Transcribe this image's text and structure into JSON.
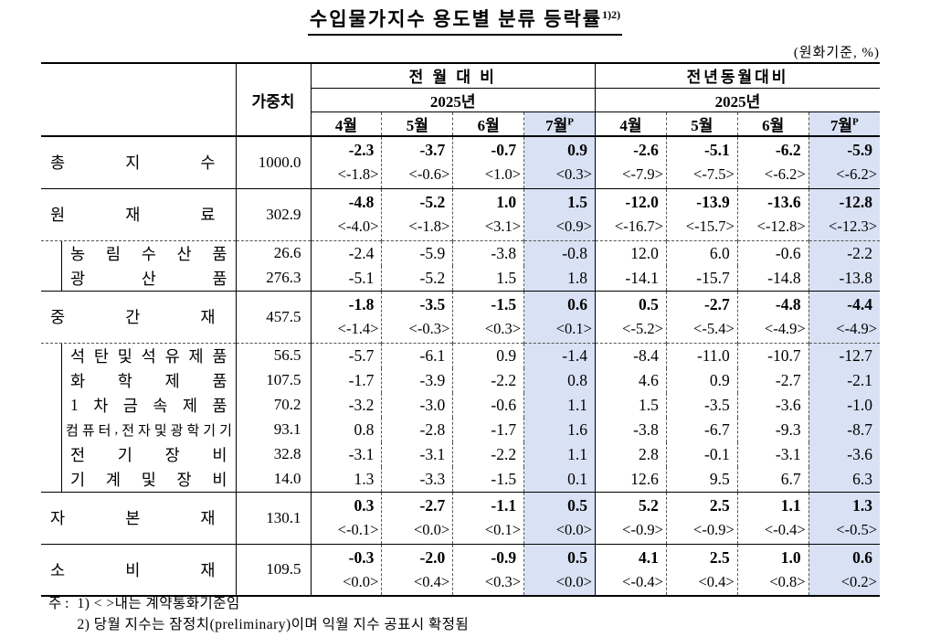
{
  "title": {
    "text": "수입물가지수 용도별 분류 등락률",
    "superscript": "1)2)"
  },
  "unit_note": "(원화기준, %)",
  "colors": {
    "highlight": "#d9e1f4",
    "border": "#000000"
  },
  "header": {
    "weight_label": "가중치",
    "groups": [
      {
        "label": "전 월 대 비",
        "year": "2025년"
      },
      {
        "label": "전년동월대비",
        "year": "2025년"
      }
    ],
    "months": [
      "4월",
      "5월",
      "6월",
      "7월"
    ],
    "prelim_mark": "P"
  },
  "table": {
    "rows": [
      {
        "type": "major",
        "label": "총지수",
        "weight": "1000.0",
        "mom": [
          "-2.3",
          "-3.7",
          "-0.7",
          "0.9"
        ],
        "mom_contract": [
          "<-1.8>",
          "<-0.6>",
          "<1.0>",
          "<0.3>"
        ],
        "yoy": [
          "-2.6",
          "-5.1",
          "-6.2",
          "-5.9"
        ],
        "yoy_contract": [
          "<-7.9>",
          "<-7.5>",
          "<-6.2>",
          "<-6.2>"
        ]
      },
      {
        "type": "major",
        "label": "원재료",
        "weight": "302.9",
        "mom": [
          "-4.8",
          "-5.2",
          "1.0",
          "1.5"
        ],
        "mom_contract": [
          "<-4.0>",
          "<-1.8>",
          "<3.1>",
          "<0.9>"
        ],
        "yoy": [
          "-12.0",
          "-13.9",
          "-13.6",
          "-12.8"
        ],
        "yoy_contract": [
          "<-16.7>",
          "<-15.7>",
          "<-12.8>",
          "<-12.3>"
        ]
      },
      {
        "type": "sub",
        "group_start": true,
        "label": "농림수산품",
        "weight": "26.6",
        "mom": [
          "-2.4",
          "-5.9",
          "-3.8",
          "-0.8"
        ],
        "yoy": [
          "12.0",
          "6.0",
          "-0.6",
          "-2.2"
        ]
      },
      {
        "type": "sub",
        "label": "광산품",
        "weight": "276.3",
        "mom": [
          "-5.1",
          "-5.2",
          "1.5",
          "1.8"
        ],
        "yoy": [
          "-14.1",
          "-15.7",
          "-14.8",
          "-13.8"
        ]
      },
      {
        "type": "major",
        "label": "중간재",
        "weight": "457.5",
        "mom": [
          "-1.8",
          "-3.5",
          "-1.5",
          "0.6"
        ],
        "mom_contract": [
          "<-1.4>",
          "<-0.3>",
          "<0.3>",
          "<0.1>"
        ],
        "yoy": [
          "0.5",
          "-2.7",
          "-4.8",
          "-4.4"
        ],
        "yoy_contract": [
          "<-5.2>",
          "<-5.4>",
          "<-4.9>",
          "<-4.9>"
        ]
      },
      {
        "type": "sub",
        "group_start": true,
        "label": "석탄및석유제품",
        "weight": "56.5",
        "mom": [
          "-5.7",
          "-6.1",
          "0.9",
          "-1.4"
        ],
        "yoy": [
          "-8.4",
          "-11.0",
          "-10.7",
          "-12.7"
        ]
      },
      {
        "type": "sub",
        "label": "화학제품",
        "weight": "107.5",
        "mom": [
          "-1.7",
          "-3.9",
          "-2.2",
          "0.8"
        ],
        "yoy": [
          "4.6",
          "0.9",
          "-2.7",
          "-2.1"
        ]
      },
      {
        "type": "sub",
        "label": "1차금속제품",
        "weight": "70.2",
        "mom": [
          "-3.2",
          "-3.0",
          "-0.6",
          "1.1"
        ],
        "yoy": [
          "1.5",
          "-3.5",
          "-3.6",
          "-1.0"
        ]
      },
      {
        "type": "sub",
        "condensed": true,
        "label": "컴퓨터,전자및광학기기",
        "weight": "93.1",
        "mom": [
          "0.8",
          "-2.8",
          "-1.7",
          "1.6"
        ],
        "yoy": [
          "-3.8",
          "-6.7",
          "-9.3",
          "-8.7"
        ]
      },
      {
        "type": "sub",
        "label": "전기장비",
        "weight": "32.8",
        "mom": [
          "-3.1",
          "-3.1",
          "-2.2",
          "1.1"
        ],
        "yoy": [
          "2.8",
          "-0.1",
          "-3.1",
          "-3.6"
        ]
      },
      {
        "type": "sub",
        "label": "기계및장비",
        "weight": "14.0",
        "mom": [
          "1.3",
          "-3.3",
          "-1.5",
          "0.1"
        ],
        "yoy": [
          "12.6",
          "9.5",
          "6.7",
          "6.3"
        ]
      },
      {
        "type": "major",
        "label": "자본재",
        "weight": "130.1",
        "mom": [
          "0.3",
          "-2.7",
          "-1.1",
          "0.5"
        ],
        "mom_contract": [
          "<-0.1>",
          "<0.0>",
          "<0.1>",
          "<0.0>"
        ],
        "yoy": [
          "5.2",
          "2.5",
          "1.1",
          "1.3"
        ],
        "yoy_contract": [
          "<-0.9>",
          "<-0.9>",
          "<-0.4>",
          "<-0.5>"
        ]
      },
      {
        "type": "major",
        "label": "소비재",
        "weight": "109.5",
        "mom": [
          "-0.3",
          "-2.0",
          "-0.9",
          "0.5"
        ],
        "mom_contract": [
          "<0.0>",
          "<0.4>",
          "<0.3>",
          "<0.0>"
        ],
        "yoy": [
          "4.1",
          "2.5",
          "1.0",
          "0.6"
        ],
        "yoy_contract": [
          "<-0.4>",
          "<0.4>",
          "<0.8>",
          "<0.2>"
        ]
      }
    ]
  },
  "footnotes": {
    "prefix": "주 :",
    "items": [
      "1) < >내는 계약통화기준임",
      "2) 당월 지수는 잠정치(preliminary)이며 익월 지수 공표시 확정됨"
    ]
  }
}
